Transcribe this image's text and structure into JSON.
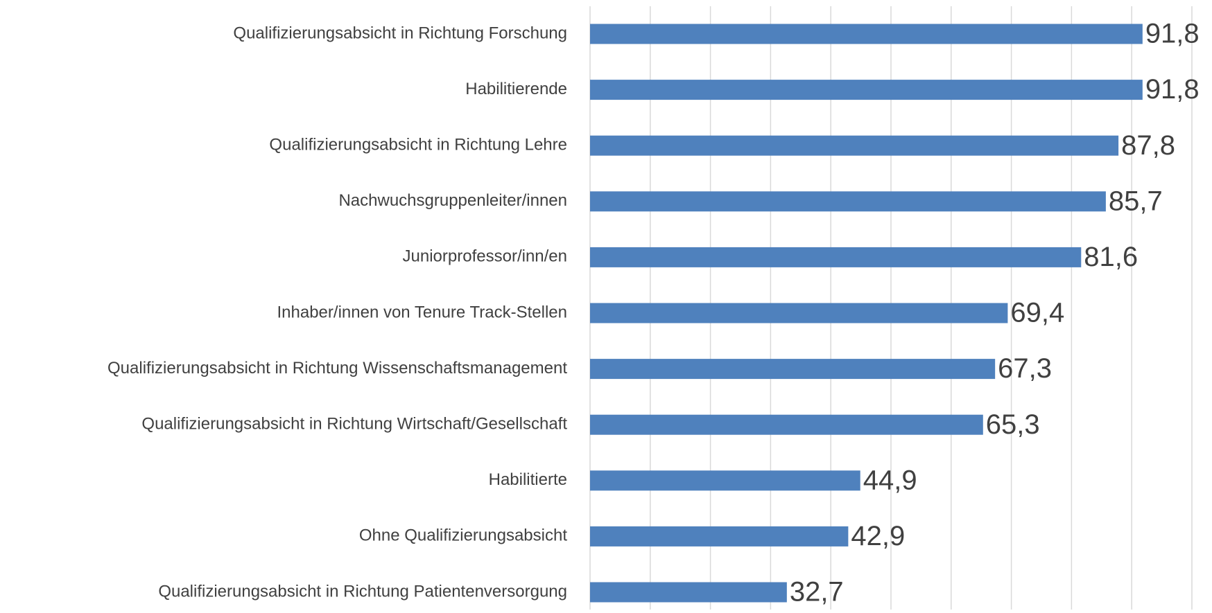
{
  "chart_data": {
    "type": "barh",
    "categories": [
      "Qualifizierungsabsicht in Richtung Forschung",
      "Habilitierende",
      "Qualifizierungsabsicht in Richtung Lehre",
      "Nachwuchsgruppenleiter/innen",
      "Juniorprofessor/inn/en",
      "Inhaber/innen von Tenure Track-Stellen",
      "Qualifizierungsabsicht in Richtung Wissenschaftsmanagement",
      "Qualifizierungsabsicht in Richtung Wirtschaft/Gesellschaft",
      "Habilitierte",
      "Ohne Qualifizierungsabsicht",
      "Qualifizierungsabsicht in Richtung Patientenversorgung"
    ],
    "values": [
      91.8,
      91.8,
      87.8,
      85.7,
      81.6,
      69.4,
      67.3,
      65.3,
      44.9,
      42.9,
      32.7
    ],
    "value_labels": [
      "91,8",
      "91,8",
      "87,8",
      "85,7",
      "81,6",
      "69,4",
      "67,3",
      "65,3",
      "44,9",
      "42,9",
      "32,7"
    ],
    "color": "#4f81bd",
    "xlim": [
      0,
      100
    ],
    "xticks": [
      0,
      10,
      20,
      30,
      40,
      50,
      60,
      70,
      80,
      90,
      100
    ],
    "grid": true
  }
}
